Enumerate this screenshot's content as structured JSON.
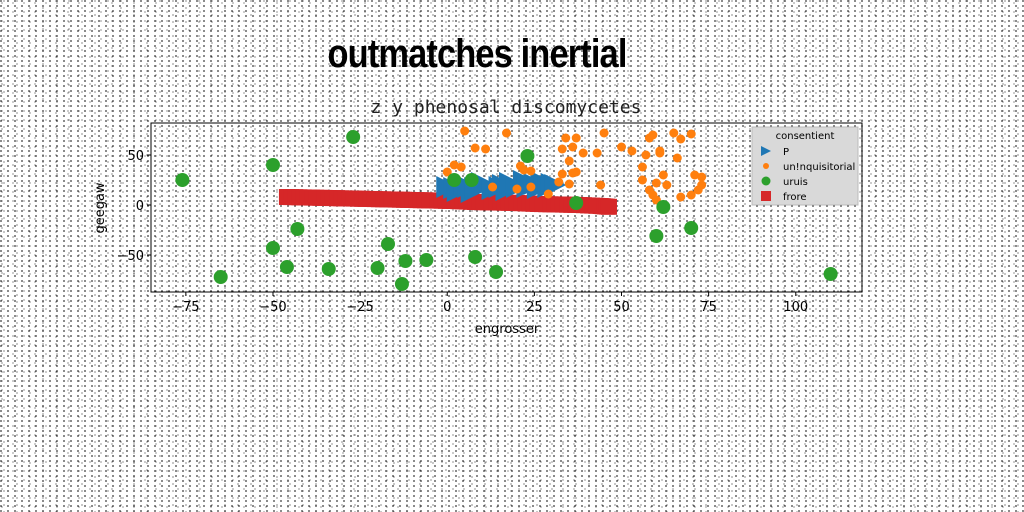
{
  "header": {
    "title": "outmatches inertial"
  },
  "chart_data": {
    "type": "scatter",
    "title": "z y phenosal discomycetes",
    "xlabel": "engrosser",
    "ylabel": "geegaw",
    "xlim": [
      -85,
      119
    ],
    "ylim": [
      -87,
      82
    ],
    "xticks": [
      -75,
      -50,
      -25,
      0,
      25,
      50,
      75,
      100
    ],
    "yticks": [
      -50,
      0,
      50
    ],
    "grid": false,
    "legend": {
      "title": "consentient",
      "placement": "top-right"
    },
    "series": [
      {
        "name": "P",
        "marker": "triangle-right",
        "color": "#1f77b4",
        "points": [
          [
            0,
            18
          ],
          [
            2,
            17
          ],
          [
            3,
            14
          ],
          [
            5,
            20
          ],
          [
            6,
            18
          ],
          [
            7,
            13
          ],
          [
            8,
            17
          ],
          [
            10,
            22
          ],
          [
            11,
            20
          ],
          [
            13,
            16
          ],
          [
            15,
            18
          ],
          [
            16,
            20
          ],
          [
            17,
            15
          ],
          [
            18,
            22
          ],
          [
            20,
            18
          ],
          [
            22,
            24
          ],
          [
            23,
            18
          ],
          [
            25,
            21
          ],
          [
            26,
            17
          ],
          [
            27,
            23
          ],
          [
            28,
            20
          ],
          [
            29,
            18
          ],
          [
            30,
            21
          ],
          [
            31,
            20
          ]
        ]
      },
      {
        "name": "un!nquisitorial",
        "color": "#ff7f0e",
        "points": [
          [
            5,
            74
          ],
          [
            8,
            57
          ],
          [
            11,
            56
          ],
          [
            17,
            72
          ],
          [
            0,
            33
          ],
          [
            2,
            40
          ],
          [
            4,
            38
          ],
          [
            13,
            18
          ],
          [
            21,
            39
          ],
          [
            22,
            35
          ],
          [
            24,
            34
          ],
          [
            29,
            11
          ],
          [
            24,
            18
          ],
          [
            32,
            23
          ],
          [
            34,
            67
          ],
          [
            37,
            67
          ],
          [
            33,
            56
          ],
          [
            36,
            58
          ],
          [
            39,
            52
          ],
          [
            43,
            52
          ],
          [
            45,
            72
          ],
          [
            35,
            44
          ],
          [
            36,
            32
          ],
          [
            37,
            33
          ],
          [
            33,
            31
          ],
          [
            35,
            21
          ],
          [
            44,
            20
          ],
          [
            50,
            58
          ],
          [
            53,
            54
          ],
          [
            56,
            38
          ],
          [
            57,
            50
          ],
          [
            58,
            67
          ],
          [
            59,
            70
          ],
          [
            61,
            52
          ],
          [
            56,
            25
          ],
          [
            58,
            15
          ],
          [
            59,
            10
          ],
          [
            60,
            22
          ],
          [
            62,
            30
          ],
          [
            63,
            20
          ],
          [
            60,
            5
          ],
          [
            65,
            72
          ],
          [
            67,
            66
          ],
          [
            66,
            47
          ],
          [
            67,
            8
          ],
          [
            70,
            71
          ],
          [
            71,
            30
          ],
          [
            73,
            28
          ],
          [
            73,
            20
          ],
          [
            72,
            15
          ],
          [
            70,
            10
          ],
          [
            61,
            54
          ],
          [
            20,
            16
          ]
        ]
      },
      {
        "name": "uruis",
        "color": "#2ca02c",
        "points": [
          [
            -76,
            25
          ],
          [
            -65,
            -72
          ],
          [
            -50,
            40
          ],
          [
            -50,
            -43
          ],
          [
            -46,
            -62
          ],
          [
            -43,
            -24
          ],
          [
            -34,
            -64
          ],
          [
            -27,
            68
          ],
          [
            -20,
            -63
          ],
          [
            -17,
            -39
          ],
          [
            -13,
            -79
          ],
          [
            -12,
            -56
          ],
          [
            -6,
            -55
          ],
          [
            2,
            25
          ],
          [
            7,
            25
          ],
          [
            8,
            -52
          ],
          [
            14,
            -67
          ],
          [
            23,
            49
          ],
          [
            37,
            2
          ],
          [
            62,
            -2
          ],
          [
            60,
            -31
          ],
          [
            70,
            -23
          ],
          [
            110,
            -69
          ]
        ]
      },
      {
        "name": "frore",
        "marker": "square",
        "color": "#d62728",
        "points": [
          [
            -46,
            8
          ],
          [
            -40,
            7.5
          ],
          [
            -34,
            7
          ],
          [
            -28,
            6.5
          ],
          [
            -22,
            6
          ],
          [
            -16,
            5.5
          ],
          [
            -10,
            5
          ],
          [
            -4,
            4.5
          ],
          [
            2,
            4
          ],
          [
            8,
            3
          ],
          [
            14,
            2.5
          ],
          [
            20,
            2
          ],
          [
            26,
            1
          ],
          [
            32,
            0.5
          ],
          [
            38,
            0
          ],
          [
            44,
            -1
          ],
          [
            47,
            -2
          ]
        ]
      }
    ]
  }
}
